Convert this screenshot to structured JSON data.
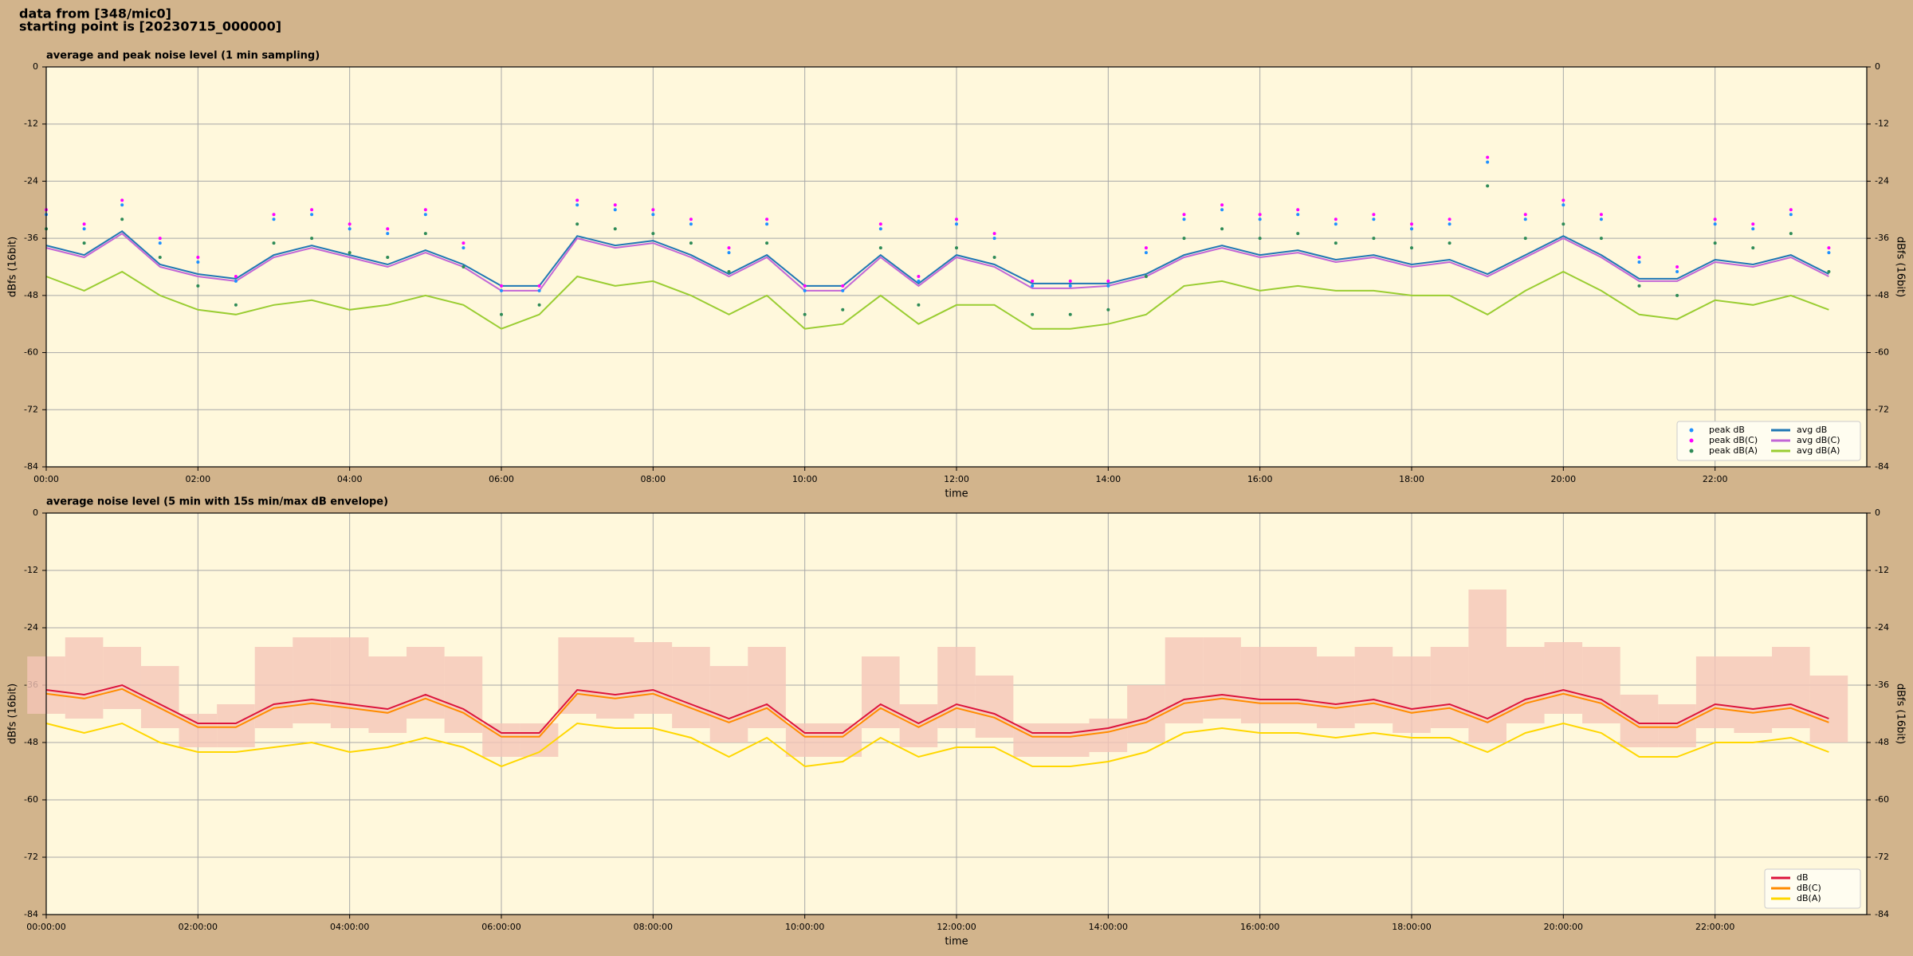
{
  "header": {
    "line1": "data from [348/mic0]",
    "line2": "starting point is [20230715_000000]"
  },
  "chart_data": [
    {
      "type": "mixed",
      "title": "average and peak noise level (1 min sampling)",
      "xlabel": "time",
      "ylabel": "dBfs (16bit)",
      "y2label": "dBfs (16bit)",
      "xlim": [
        0,
        24
      ],
      "ylim": [
        -84,
        0
      ],
      "yticks": [
        0,
        -12,
        -24,
        -36,
        -48,
        -60,
        -72,
        -84
      ],
      "xticks": [
        {
          "value": 0,
          "label": "00:00"
        },
        {
          "value": 2,
          "label": "02:00"
        },
        {
          "value": 4,
          "label": "04:00"
        },
        {
          "value": 6,
          "label": "06:00"
        },
        {
          "value": 8,
          "label": "08:00"
        },
        {
          "value": 10,
          "label": "10:00"
        },
        {
          "value": 12,
          "label": "12:00"
        },
        {
          "value": 14,
          "label": "14:00"
        },
        {
          "value": 16,
          "label": "16:00"
        },
        {
          "value": 18,
          "label": "18:00"
        },
        {
          "value": 20,
          "label": "20:00"
        },
        {
          "value": 22,
          "label": "22:00"
        }
      ],
      "grid": true,
      "legend": "lower right",
      "legend_columns": 2,
      "x": [
        0,
        0.5,
        1,
        1.5,
        2,
        2.5,
        3,
        3.5,
        4,
        4.5,
        5,
        5.5,
        6,
        6.5,
        7,
        7.5,
        8,
        8.5,
        9,
        9.5,
        10,
        10.5,
        11,
        11.5,
        12,
        12.5,
        13,
        13.5,
        14,
        14.5,
        15,
        15.5,
        16,
        16.5,
        17,
        17.5,
        18,
        18.5,
        19,
        19.5,
        20,
        20.5,
        21,
        21.5,
        22,
        22.5,
        23,
        23.5
      ],
      "series": [
        {
          "name": "peak dB",
          "type": "scatter",
          "color": "#1e90ff",
          "values": [
            -31,
            -34,
            -29,
            -37,
            -41,
            -45,
            -32,
            -31,
            -34,
            -35,
            -31,
            -38,
            -47,
            -47,
            -29,
            -30,
            -31,
            -33,
            -39,
            -33,
            -47,
            -47,
            -34,
            -45,
            -33,
            -36,
            -46,
            -46,
            -46,
            -39,
            -32,
            -30,
            -32,
            -31,
            -33,
            -32,
            -34,
            -33,
            -20,
            -32,
            -29,
            -32,
            -41,
            -43,
            -33,
            -34,
            -31,
            -39
          ]
        },
        {
          "name": "peak dB(C)",
          "type": "scatter",
          "color": "#ff00ff",
          "values": [
            -30,
            -33,
            -28,
            -36,
            -40,
            -44,
            -31,
            -30,
            -33,
            -34,
            -30,
            -37,
            -46,
            -46,
            -28,
            -29,
            -30,
            -32,
            -38,
            -32,
            -46,
            -46,
            -33,
            -44,
            -32,
            -35,
            -45,
            -45,
            -45,
            -38,
            -31,
            -29,
            -31,
            -30,
            -32,
            -31,
            -33,
            -32,
            -19,
            -31,
            -28,
            -31,
            -40,
            -42,
            -32,
            -33,
            -30,
            -38
          ]
        },
        {
          "name": "peak dB(A)",
          "type": "scatter",
          "color": "#2e8b57",
          "values": [
            -34,
            -37,
            -32,
            -40,
            -46,
            -50,
            -37,
            -36,
            -39,
            -40,
            -35,
            -42,
            -52,
            -50,
            -33,
            -34,
            -35,
            -37,
            -43,
            -37,
            -52,
            -51,
            -38,
            -50,
            -38,
            -40,
            -52,
            -52,
            -51,
            -44,
            -36,
            -34,
            -36,
            -35,
            -37,
            -36,
            -38,
            -37,
            -25,
            -36,
            -33,
            -36,
            -46,
            -48,
            -37,
            -38,
            -35,
            -43
          ]
        },
        {
          "name": "avg dB",
          "type": "line",
          "color": "#1f77b4",
          "values": [
            -37.5,
            -39.5,
            -34.5,
            -41.5,
            -43.5,
            -44.5,
            -39.5,
            -37.5,
            -39.5,
            -41.5,
            -38.5,
            -41.5,
            -46,
            -46,
            -35.5,
            -37.5,
            -36.5,
            -39.5,
            -43.5,
            -39.5,
            -46,
            -46,
            -39.5,
            -45.5,
            -39.5,
            -41.5,
            -45.5,
            -45.5,
            -45.5,
            -43.5,
            -39.5,
            -37.5,
            -39.5,
            -38.5,
            -40.5,
            -39.5,
            -41.5,
            -40.5,
            -43.5,
            -39.5,
            -35.5,
            -39.5,
            -44.5,
            -44.5,
            -40.5,
            -41.5,
            -39.5,
            -43.5
          ]
        },
        {
          "name": "avg dB(C)",
          "type": "line",
          "color": "#c266d6",
          "values": [
            -38,
            -40,
            -35,
            -42,
            -44,
            -45,
            -40,
            -38,
            -40,
            -42,
            -39,
            -42,
            -47,
            -47,
            -36,
            -38,
            -37,
            -40,
            -44,
            -40,
            -47,
            -47,
            -40,
            -46,
            -40,
            -42,
            -46.5,
            -46.5,
            -46,
            -44,
            -40,
            -38,
            -40,
            -39,
            -41,
            -40,
            -42,
            -41,
            -44,
            -40,
            -36,
            -40,
            -45,
            -45,
            -41,
            -42,
            -40,
            -44
          ]
        },
        {
          "name": "avg dB(A)",
          "type": "line",
          "color": "#9acd32",
          "values": [
            -44,
            -47,
            -43,
            -48,
            -51,
            -52,
            -50,
            -49,
            -51,
            -50,
            -48,
            -50,
            -55,
            -52,
            -44,
            -46,
            -45,
            -48,
            -52,
            -48,
            -55,
            -54,
            -48,
            -54,
            -50,
            -50,
            -55,
            -55,
            -54,
            -52,
            -46,
            -45,
            -47,
            -46,
            -47,
            -47,
            -48,
            -48,
            -52,
            -47,
            -43,
            -47,
            -52,
            -53,
            -49,
            -50,
            -48,
            -51
          ]
        }
      ]
    },
    {
      "type": "mixed",
      "title": "average noise level (5 min with 15s min/max dB envelope)",
      "xlabel": "time",
      "ylabel": "dBfs (16bit)",
      "y2label": "dBfs (16bit)",
      "xlim": [
        0,
        24
      ],
      "ylim": [
        -84,
        0
      ],
      "yticks": [
        0,
        -12,
        -24,
        -36,
        -48,
        -60,
        -72,
        -84
      ],
      "xticks": [
        {
          "value": 0,
          "label": "00:00:00"
        },
        {
          "value": 2,
          "label": "02:00:00"
        },
        {
          "value": 4,
          "label": "04:00:00"
        },
        {
          "value": 6,
          "label": "06:00:00"
        },
        {
          "value": 8,
          "label": "08:00:00"
        },
        {
          "value": 10,
          "label": "10:00:00"
        },
        {
          "value": 12,
          "label": "12:00:00"
        },
        {
          "value": 14,
          "label": "14:00:00"
        },
        {
          "value": 16,
          "label": "16:00:00"
        },
        {
          "value": 18,
          "label": "18:00:00"
        },
        {
          "value": 20,
          "label": "20:00:00"
        },
        {
          "value": 22,
          "label": "22:00:00"
        }
      ],
      "grid": true,
      "legend": "lower right",
      "legend_columns": 1,
      "x": [
        0,
        0.5,
        1,
        1.5,
        2,
        2.5,
        3,
        3.5,
        4,
        4.5,
        5,
        5.5,
        6,
        6.5,
        7,
        7.5,
        8,
        8.5,
        9,
        9.5,
        10,
        10.5,
        11,
        11.5,
        12,
        12.5,
        13,
        13.5,
        14,
        14.5,
        15,
        15.5,
        16,
        16.5,
        17,
        17.5,
        18,
        18.5,
        19,
        19.5,
        20,
        20.5,
        21,
        21.5,
        22,
        22.5,
        23,
        23.5
      ],
      "envelope": {
        "color": "#f5c6b8",
        "high": [
          -30,
          -26,
          -28,
          -32,
          -42,
          -40,
          -28,
          -26,
          -26,
          -30,
          -28,
          -30,
          -44,
          -44,
          -26,
          -26,
          -27,
          -28,
          -32,
          -28,
          -44,
          -44,
          -30,
          -40,
          -28,
          -34,
          -44,
          -44,
          -43,
          -36,
          -26,
          -26,
          -28,
          -28,
          -30,
          -28,
          -30,
          -28,
          -16,
          -28,
          -27,
          -28,
          -38,
          -40,
          -30,
          -30,
          -28,
          -34
        ],
        "low": [
          -42,
          -43,
          -41,
          -45,
          -49,
          -49,
          -45,
          -44,
          -45,
          -46,
          -43,
          -46,
          -51,
          -51,
          -42,
          -43,
          -42,
          -45,
          -48,
          -45,
          -51,
          -51,
          -45,
          -49,
          -45,
          -47,
          -51,
          -51,
          -50,
          -48,
          -44,
          -43,
          -44,
          -44,
          -45,
          -44,
          -46,
          -45,
          -48,
          -44,
          -42,
          -44,
          -49,
          -49,
          -45,
          -46,
          -45,
          -48
        ]
      },
      "series": [
        {
          "name": "dB",
          "type": "line",
          "color": "#dc143c",
          "values": [
            -37,
            -38,
            -36,
            -40,
            -44,
            -44,
            -40,
            -39,
            -40,
            -41,
            -38,
            -41,
            -46,
            -46,
            -37,
            -38,
            -37,
            -40,
            -43,
            -40,
            -46,
            -46,
            -40,
            -44,
            -40,
            -42,
            -46,
            -46,
            -45,
            -43,
            -39,
            -38,
            -39,
            -39,
            -40,
            -39,
            -41,
            -40,
            -43,
            -39,
            -37,
            -39,
            -44,
            -44,
            -40,
            -41,
            -40,
            -43
          ]
        },
        {
          "name": "dB(C)",
          "type": "line",
          "color": "#ff8c00",
          "values": [
            -37.8,
            -38.8,
            -36.8,
            -40.8,
            -44.8,
            -44.8,
            -40.8,
            -39.8,
            -40.8,
            -41.8,
            -38.8,
            -41.8,
            -46.8,
            -46.8,
            -37.8,
            -38.8,
            -37.8,
            -40.8,
            -43.8,
            -40.8,
            -46.8,
            -46.8,
            -40.8,
            -44.8,
            -40.8,
            -42.8,
            -46.8,
            -46.8,
            -45.8,
            -43.8,
            -39.8,
            -38.8,
            -39.8,
            -39.8,
            -40.8,
            -39.8,
            -41.8,
            -40.8,
            -43.8,
            -39.8,
            -37.8,
            -39.8,
            -44.8,
            -44.8,
            -40.8,
            -41.8,
            -40.8,
            -43.8
          ]
        },
        {
          "name": "dB(A)",
          "type": "line",
          "color": "#ffd700",
          "values": [
            -44,
            -46,
            -44,
            -48,
            -50,
            -50,
            -49,
            -48,
            -50,
            -49,
            -47,
            -49,
            -53,
            -50,
            -44,
            -45,
            -45,
            -47,
            -51,
            -47,
            -53,
            -52,
            -47,
            -51,
            -49,
            -49,
            -53,
            -53,
            -52,
            -50,
            -46,
            -45,
            -46,
            -46,
            -47,
            -46,
            -47,
            -47,
            -50,
            -46,
            -44,
            -46,
            -51,
            -51,
            -48,
            -48,
            -47,
            -50
          ]
        }
      ]
    }
  ]
}
